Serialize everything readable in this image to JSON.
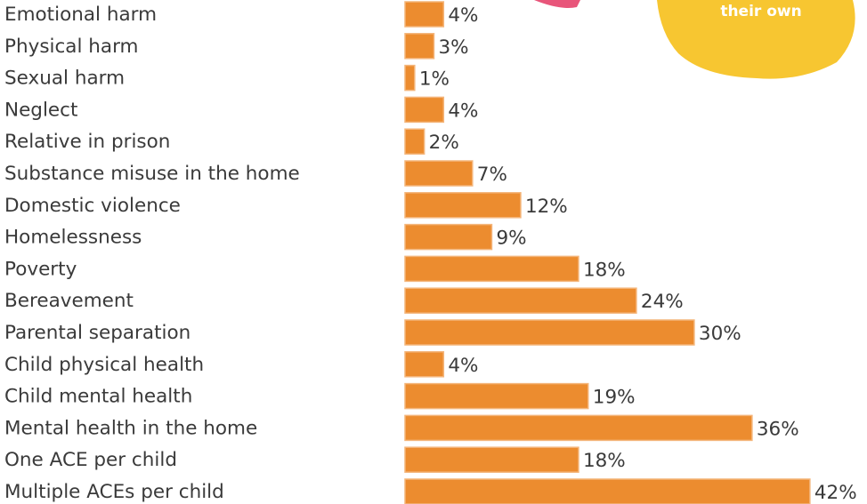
{
  "chart_data": {
    "type": "bar",
    "orientation": "horizontal",
    "annotation": "their own",
    "color": "#ec8c2f",
    "categories": [
      "Emotional harm",
      "Physical harm",
      "Sexual harm",
      "Neglect",
      "Relative in prison",
      "Substance misuse in the home",
      "Domestic violence",
      "Homelessness",
      "Poverty",
      "Bereavement",
      "Parental separation",
      "Child physical health",
      "Child mental health",
      "Mental health in the home",
      "One ACE per child",
      "Multiple ACEs per child"
    ],
    "values": [
      4,
      3,
      1,
      4,
      2,
      7,
      12,
      9,
      18,
      24,
      30,
      4,
      19,
      36,
      18,
      42
    ],
    "value_labels": [
      "4%",
      "3%",
      "1%",
      "4%",
      "2%",
      "7%",
      "12%",
      "9%",
      "18%",
      "24%",
      "30%",
      "4%",
      "19%",
      "36%",
      "18%",
      "42%"
    ]
  }
}
